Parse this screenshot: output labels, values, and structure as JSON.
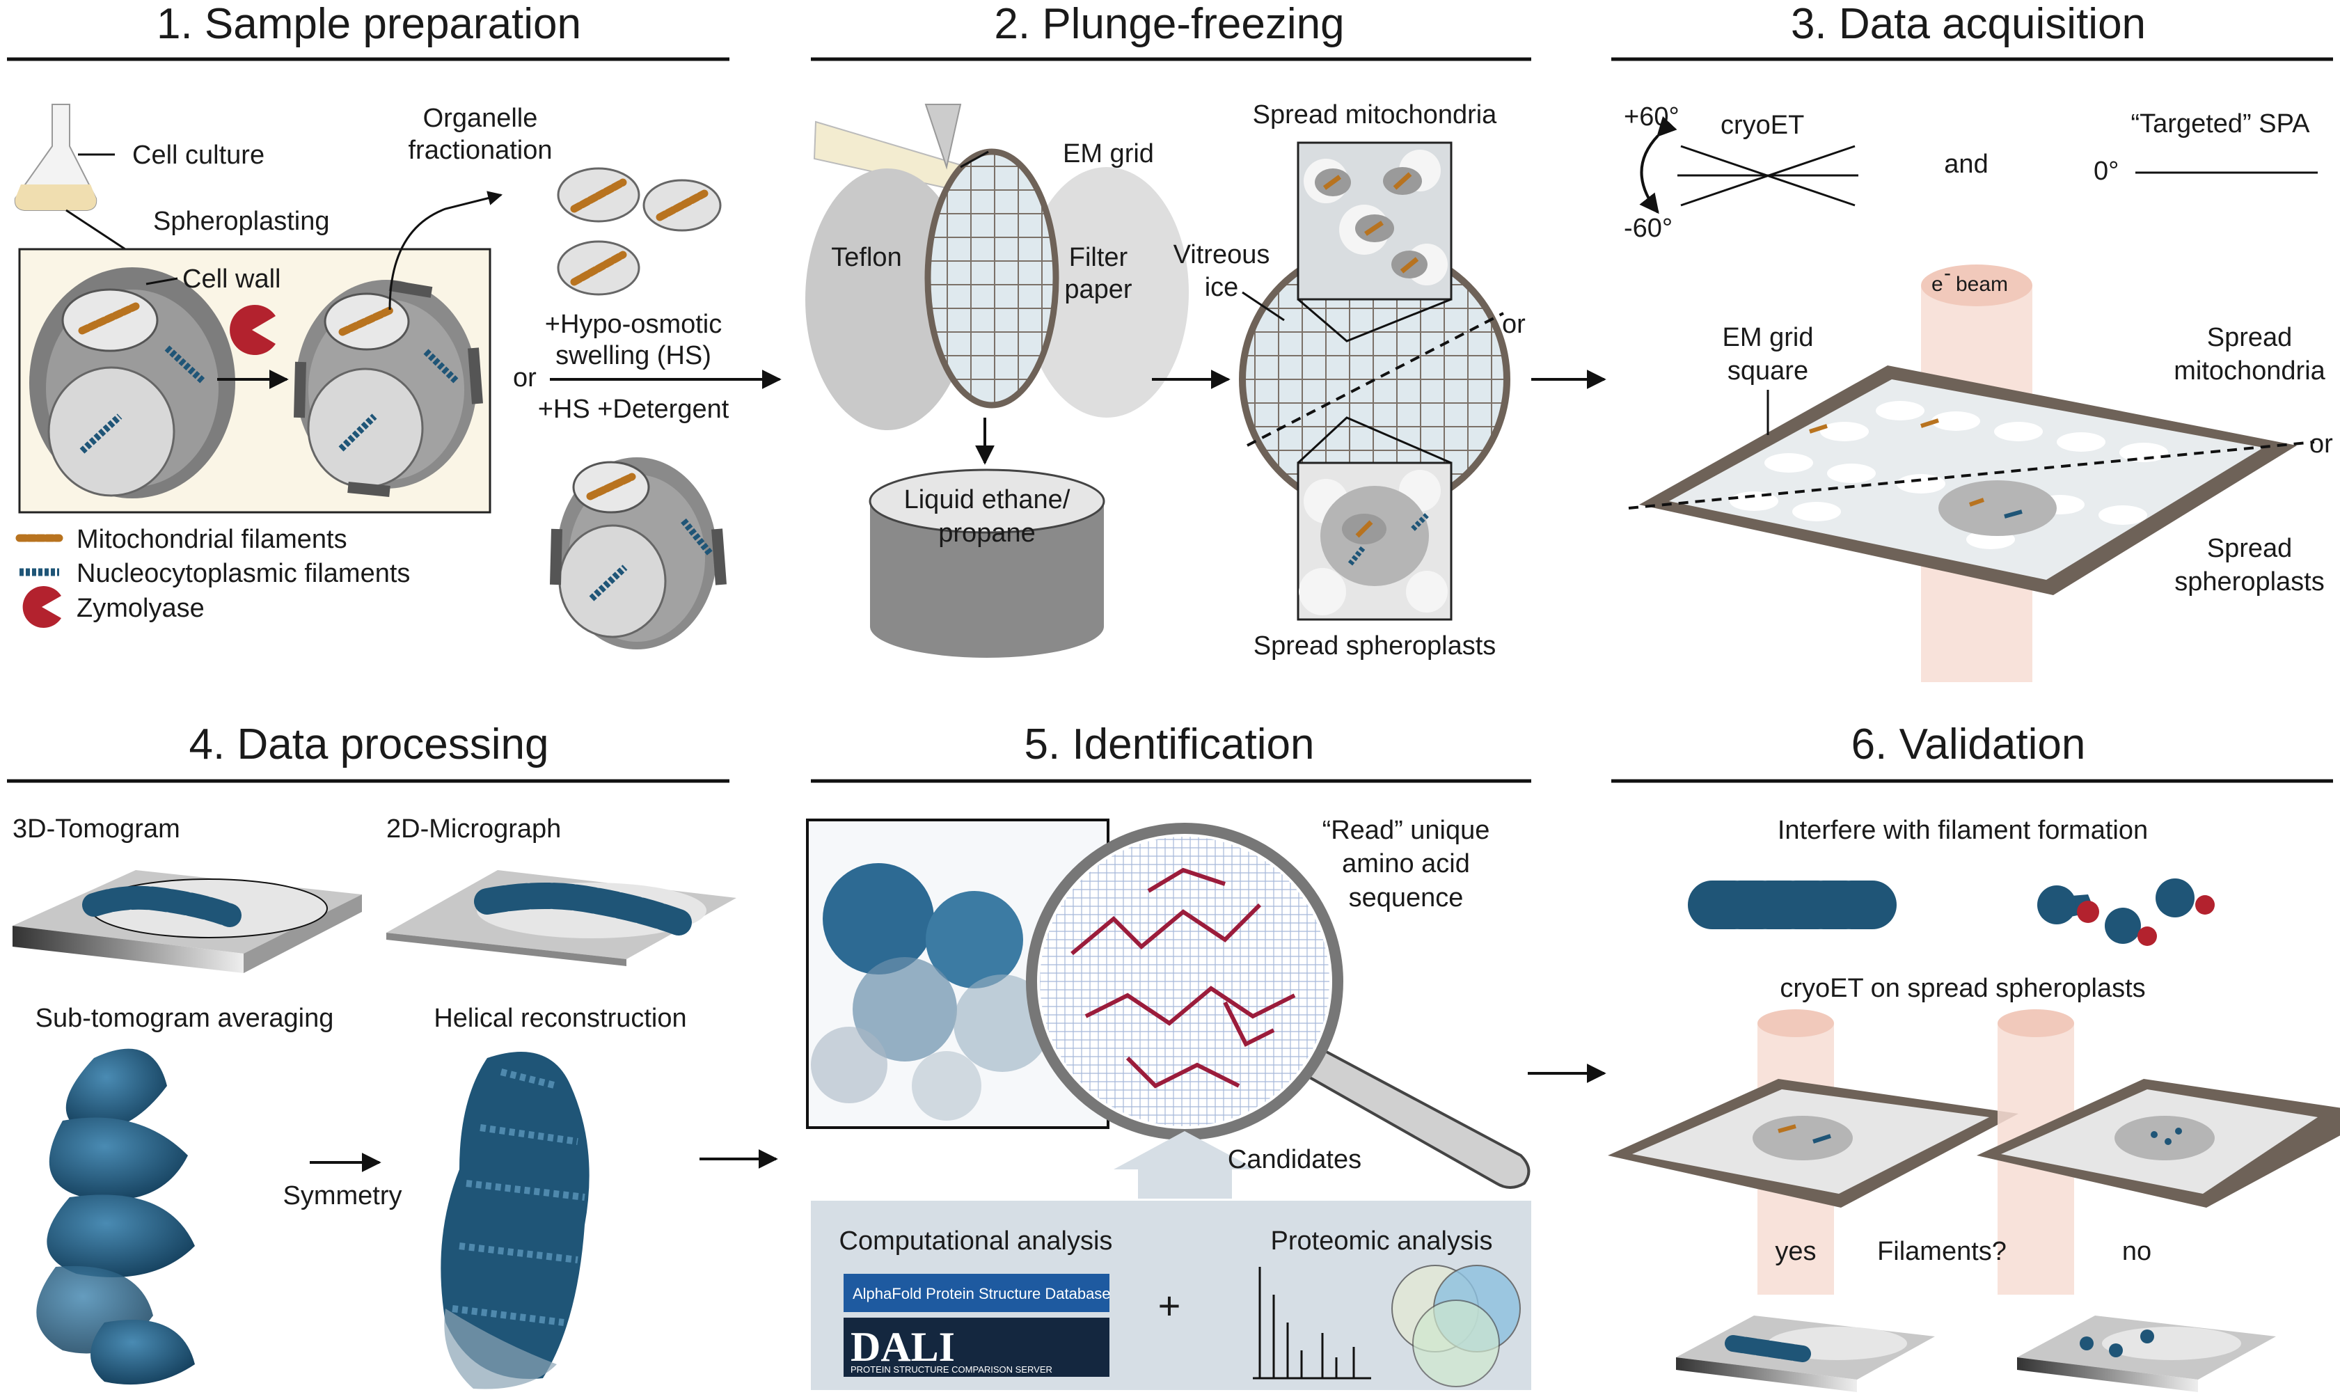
{
  "panels": {
    "p1": {
      "title": "1. Sample preparation",
      "cell_culture": "Cell culture",
      "spheroplasting": "Spheroplasting",
      "cell_wall": "Cell wall",
      "organelle_fractionation": [
        "Organelle",
        "fractionation"
      ],
      "hypo_osmotic": [
        "+Hypo-osmotic",
        "swelling (HS)"
      ],
      "hs_detergent": "+HS +Detergent",
      "or": "or",
      "legend": [
        "Mitochondrial filaments",
        "Nucleocytoplasmic filaments",
        "Zymolyase"
      ]
    },
    "p2": {
      "title": "2. Plunge-freezing",
      "em_grid": "EM grid",
      "teflon": "Teflon",
      "filter_paper": [
        "Filter",
        "paper"
      ],
      "liquid_ethane": [
        "Liquid ethane/",
        "propane"
      ],
      "spread_mito": "Spread mitochondria",
      "vitreous_ice": [
        "Vitreous",
        "ice"
      ],
      "or": "or",
      "spread_sphero": "Spread spheroplasts"
    },
    "p3": {
      "title": "3. Data acquisition",
      "plus60": "+60°",
      "minus60": "-60°",
      "cryoet": "cryoET",
      "and": "and",
      "targeted_spa": "“Targeted” SPA",
      "zero": "0°",
      "e_beam": "beam",
      "e_symbol": "e",
      "e_sup": "-",
      "em_grid_square": [
        "EM grid",
        "square"
      ],
      "spread_mito": [
        "Spread",
        "mitochondria"
      ],
      "or": "or",
      "spread_sphero": [
        "Spread",
        "spheroplasts"
      ]
    },
    "p4": {
      "title": "4. Data processing",
      "tomogram": "3D-Tomogram",
      "micrograph": "2D-Micrograph",
      "subtomo": "Sub-tomogram averaging",
      "helical": "Helical reconstruction",
      "symmetry": "Symmetry"
    },
    "p5": {
      "title": "5. Identification",
      "read_unique": [
        "“Read” unique",
        "amino acid",
        "sequence"
      ],
      "candidates": "Candidates",
      "computational": "Computational analysis",
      "proteomic": "Proteomic analysis",
      "plus": "+",
      "alphafold": "AlphaFold Protein Structure Database",
      "dali": "DALI",
      "dali_sub": "PROTEIN STRUCTURE COMPARISON SERVER"
    },
    "p6": {
      "title": "6. Validation",
      "interfere": "Interfere with filament formation",
      "cryoet_spread": "cryoET on spread spheroplasts",
      "yes": "yes",
      "filaments_q": "Filaments?",
      "no": "no"
    }
  },
  "colors": {
    "filament_blue": "#1f5577",
    "mito_orange": "#b8731f",
    "zymolyase_red": "#b3222e",
    "cell_gray": "#7d7d7d",
    "grid_brown": "#6e6258",
    "beam_pink": "#f7ddd3"
  }
}
